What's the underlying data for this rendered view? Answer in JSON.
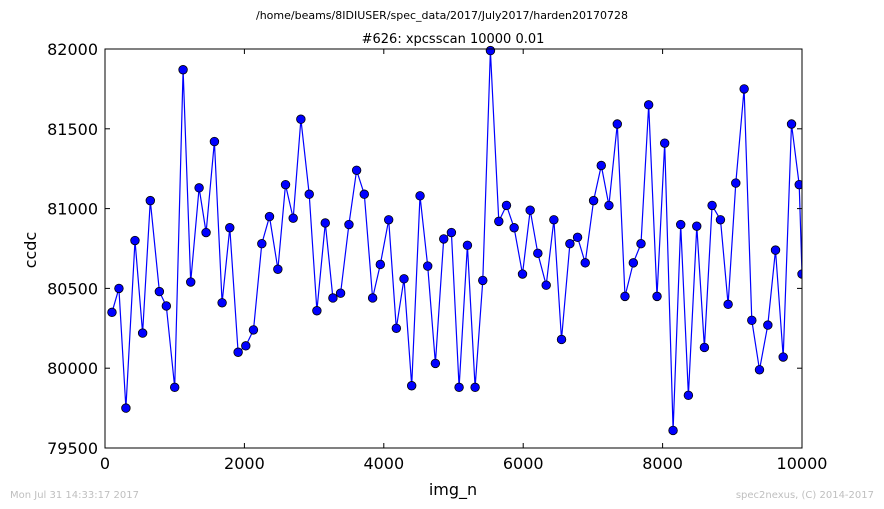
{
  "chart_data": {
    "type": "line",
    "suptitle": "/home/beams/8IDIUSER/spec_data/2017/July2017/harden20170728",
    "title": "#626: xpcsscan 10000 0.01",
    "xlabel": "img_n",
    "ylabel": "ccdc",
    "xlim": [
      0,
      10000
    ],
    "ylim": [
      79500,
      82000
    ],
    "x_ticks": [
      0,
      2000,
      4000,
      6000,
      8000,
      10000
    ],
    "y_ticks": [
      79500,
      80000,
      80500,
      81000,
      81500,
      82000
    ],
    "x_tick_labels": [
      "0",
      "2000",
      "4000",
      "6000",
      "8000",
      "10000"
    ],
    "y_tick_labels": [
      "79500",
      "80000",
      "80500",
      "81000",
      "81500",
      "82000"
    ],
    "color": "#0000ff",
    "marker": "circle",
    "grid": false,
    "series": [
      {
        "x": [
          100,
          200,
          300,
          430,
          540,
          650,
          780,
          880,
          1000,
          1120,
          1230,
          1350,
          1450,
          1570,
          1680,
          1790,
          1910,
          2020,
          2130,
          2250,
          2360,
          2480,
          2590,
          2700,
          2810,
          2930,
          3040,
          3160,
          3270,
          3380,
          3500,
          3610,
          3720,
          3840,
          3950,
          4070,
          4180,
          4290,
          4400,
          4520,
          4630,
          4740,
          4860,
          4970,
          5080,
          5200,
          5310,
          5420,
          5530,
          5650,
          5760,
          5870,
          5990,
          6100,
          6210,
          6330,
          6440,
          6550,
          6670,
          6780,
          6890,
          7010,
          7120,
          7230,
          7350,
          7460,
          7580,
          7690,
          7800,
          7920,
          8030,
          8150,
          8260,
          8370,
          8490,
          8600,
          8710,
          8830,
          8940,
          9050,
          9170,
          9280,
          9390,
          9510,
          9620,
          9730,
          9850,
          9960,
          10000
        ],
        "values": [
          80350,
          80500,
          79750,
          80800,
          80220,
          81050,
          80480,
          80390,
          79880,
          81870,
          80540,
          81130,
          80850,
          81420,
          80410,
          80880,
          80100,
          80140,
          80240,
          80780,
          80950,
          80620,
          81150,
          80940,
          81560,
          81090,
          80360,
          80910,
          80440,
          80470,
          80900,
          81240,
          81090,
          80440,
          80650,
          80930,
          80250,
          80560,
          79890,
          81080,
          80640,
          80030,
          80810,
          80850,
          79880,
          80770,
          79880,
          80550,
          81990,
          80920,
          81020,
          80880,
          80590,
          80990,
          80720,
          80520,
          80930,
          80180,
          80780,
          80820,
          80660,
          81050,
          81270,
          81020,
          81530,
          80450,
          80660,
          80780,
          81650,
          80450,
          81410,
          79610,
          80900,
          79830,
          80890,
          80130,
          81020,
          80930,
          80400,
          81160,
          81750,
          80300,
          79990,
          80270,
          80740,
          80070,
          81530,
          81150,
          80590
        ]
      }
    ]
  },
  "footer": {
    "left": "Mon Jul 31 14:33:17 2017",
    "right": "spec2nexus, (C) 2014-2017"
  }
}
